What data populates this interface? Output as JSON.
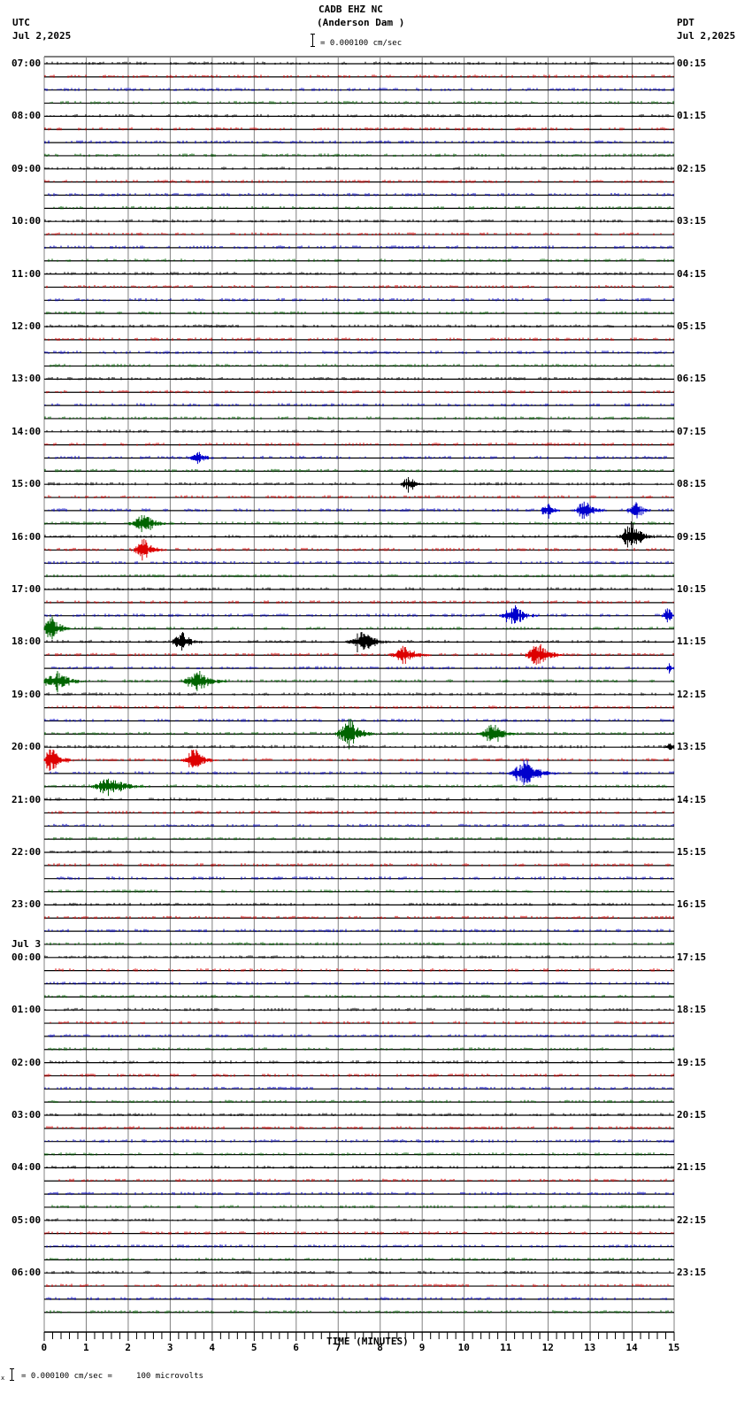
{
  "header": {
    "station": "CADB EHZ NC",
    "location": "(Anderson Dam )",
    "scale_text": "= 0.000100 cm/sec",
    "left_tz": "UTC",
    "left_date": "Jul 2,2025",
    "right_tz": "PDT",
    "right_date": "Jul 2,2025"
  },
  "footer": {
    "scale_text": "= 0.000100 cm/sec =     100 microvolts",
    "prefix": "x"
  },
  "colors": {
    "trace_colors": [
      "#000000",
      "#dd0000",
      "#0000cc",
      "#006400"
    ],
    "grid": "#808080",
    "baseline": "#000000"
  },
  "chart_data": {
    "type": "line",
    "title": "CADB EHZ NC (Anderson Dam )",
    "xlabel": "TIME (MINUTES)",
    "ylabel": "",
    "x_ticks": [
      "0",
      "1",
      "2",
      "3",
      "4",
      "5",
      "6",
      "7",
      "8",
      "9",
      "10",
      "11",
      "12",
      "13",
      "14",
      "15"
    ],
    "xlim": [
      0,
      15
    ],
    "rows_per_hour": 4,
    "total_rows": 96,
    "left_labels": [
      {
        "row": 0,
        "text": "07:00"
      },
      {
        "row": 4,
        "text": "08:00"
      },
      {
        "row": 8,
        "text": "09:00"
      },
      {
        "row": 12,
        "text": "10:00"
      },
      {
        "row": 16,
        "text": "11:00"
      },
      {
        "row": 20,
        "text": "12:00"
      },
      {
        "row": 24,
        "text": "13:00"
      },
      {
        "row": 28,
        "text": "14:00"
      },
      {
        "row": 32,
        "text": "15:00"
      },
      {
        "row": 36,
        "text": "16:00"
      },
      {
        "row": 40,
        "text": "17:00"
      },
      {
        "row": 44,
        "text": "18:00"
      },
      {
        "row": 48,
        "text": "19:00"
      },
      {
        "row": 52,
        "text": "20:00"
      },
      {
        "row": 56,
        "text": "21:00"
      },
      {
        "row": 60,
        "text": "22:00"
      },
      {
        "row": 64,
        "text": "23:00"
      },
      {
        "row": 68,
        "text": "00:00",
        "date": "Jul 3"
      },
      {
        "row": 72,
        "text": "01:00"
      },
      {
        "row": 76,
        "text": "02:00"
      },
      {
        "row": 80,
        "text": "03:00"
      },
      {
        "row": 84,
        "text": "04:00"
      },
      {
        "row": 88,
        "text": "05:00"
      },
      {
        "row": 92,
        "text": "06:00"
      }
    ],
    "right_labels": [
      {
        "row": 0,
        "text": "00:15"
      },
      {
        "row": 4,
        "text": "01:15"
      },
      {
        "row": 8,
        "text": "02:15"
      },
      {
        "row": 12,
        "text": "03:15"
      },
      {
        "row": 16,
        "text": "04:15"
      },
      {
        "row": 20,
        "text": "05:15"
      },
      {
        "row": 24,
        "text": "06:15"
      },
      {
        "row": 28,
        "text": "07:15"
      },
      {
        "row": 32,
        "text": "08:15"
      },
      {
        "row": 36,
        "text": "09:15"
      },
      {
        "row": 40,
        "text": "10:15"
      },
      {
        "row": 44,
        "text": "11:15"
      },
      {
        "row": 48,
        "text": "12:15"
      },
      {
        "row": 52,
        "text": "13:15"
      },
      {
        "row": 56,
        "text": "14:15"
      },
      {
        "row": 60,
        "text": "15:15"
      },
      {
        "row": 64,
        "text": "16:15"
      },
      {
        "row": 68,
        "text": "17:15"
      },
      {
        "row": 72,
        "text": "18:15"
      },
      {
        "row": 76,
        "text": "19:15"
      },
      {
        "row": 80,
        "text": "20:15"
      },
      {
        "row": 84,
        "text": "21:15"
      },
      {
        "row": 88,
        "text": "22:15"
      },
      {
        "row": 92,
        "text": "23:15"
      }
    ],
    "events": [
      {
        "row": 30,
        "minute": 3.7,
        "amp": 6,
        "dur": 0.5
      },
      {
        "row": 32,
        "minute": 8.7,
        "amp": 9,
        "dur": 0.4
      },
      {
        "row": 34,
        "minute": 12.0,
        "amp": 8,
        "dur": 0.4
      },
      {
        "row": 34,
        "minute": 12.9,
        "amp": 10,
        "dur": 0.6
      },
      {
        "row": 34,
        "minute": 14.1,
        "amp": 8,
        "dur": 0.5
      },
      {
        "row": 35,
        "minute": 2.4,
        "amp": 9,
        "dur": 0.8
      },
      {
        "row": 36,
        "minute": 14.0,
        "amp": 16,
        "dur": 0.6
      },
      {
        "row": 37,
        "minute": 2.4,
        "amp": 11,
        "dur": 0.6
      },
      {
        "row": 42,
        "minute": 11.2,
        "amp": 13,
        "dur": 0.6
      },
      {
        "row": 42,
        "minute": 14.85,
        "amp": 10,
        "dur": 0.3
      },
      {
        "row": 43,
        "minute": 0.2,
        "amp": 12,
        "dur": 0.6
      },
      {
        "row": 44,
        "minute": 3.3,
        "amp": 10,
        "dur": 0.6
      },
      {
        "row": 44,
        "minute": 7.6,
        "amp": 11,
        "dur": 0.8
      },
      {
        "row": 45,
        "minute": 8.6,
        "amp": 10,
        "dur": 0.7
      },
      {
        "row": 45,
        "minute": 11.8,
        "amp": 12,
        "dur": 0.7
      },
      {
        "row": 46,
        "minute": 14.9,
        "amp": 5,
        "dur": 0.2
      },
      {
        "row": 47,
        "minute": 0.3,
        "amp": 11,
        "dur": 0.8
      },
      {
        "row": 47,
        "minute": 3.7,
        "amp": 11,
        "dur": 0.8
      },
      {
        "row": 51,
        "minute": 7.3,
        "amp": 15,
        "dur": 0.7
      },
      {
        "row": 51,
        "minute": 10.7,
        "amp": 11,
        "dur": 0.7
      },
      {
        "row": 52,
        "minute": 14.9,
        "amp": 5,
        "dur": 0.3
      },
      {
        "row": 53,
        "minute": 0.2,
        "amp": 12,
        "dur": 0.6
      },
      {
        "row": 53,
        "minute": 3.6,
        "amp": 12,
        "dur": 0.6
      },
      {
        "row": 54,
        "minute": 11.5,
        "amp": 14,
        "dur": 0.8
      },
      {
        "row": 55,
        "minute": 1.6,
        "amp": 9,
        "dur": 1.0
      }
    ]
  }
}
